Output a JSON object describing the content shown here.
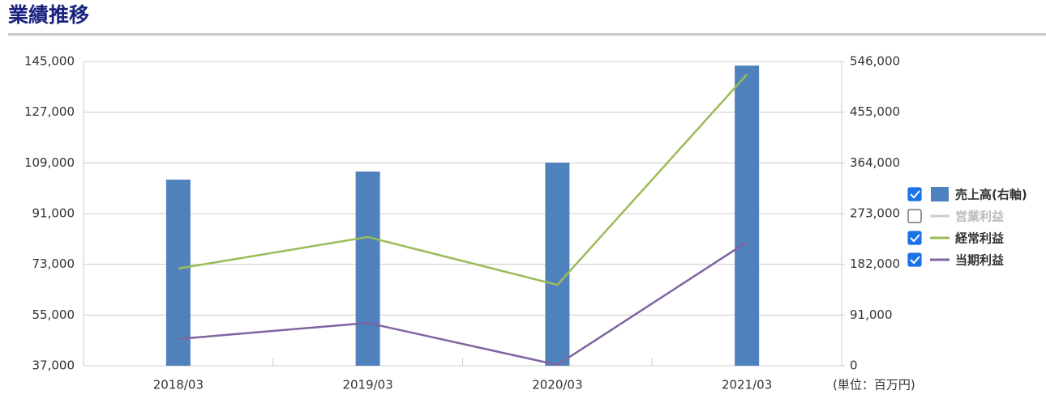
{
  "chart_data": {
    "type": "bar-line",
    "title": "業績推移",
    "unit_label": "(単位：百万円)",
    "categories": [
      "2018/03",
      "2019/03",
      "2020/03",
      "2021/03"
    ],
    "ylim": [
      37000,
      145000
    ],
    "yticks": [
      {
        "value": 37000,
        "label": "37,000"
      },
      {
        "value": 55000,
        "label": "55,000"
      },
      {
        "value": 73000,
        "label": "73,000"
      },
      {
        "value": 91000,
        "label": "91,000"
      },
      {
        "value": 109000,
        "label": "109,000"
      },
      {
        "value": 127000,
        "label": "127,000"
      },
      {
        "value": 145000,
        "label": "145,000"
      }
    ],
    "y2lim": [
      0,
      546000
    ],
    "y2ticks": [
      0,
      {
        "value": 91000,
        "label": "91,000"
      },
      {
        "value": 182000,
        "label": "182,000"
      },
      {
        "value": 273000,
        "label": "273,000"
      },
      {
        "value": 364000,
        "label": "364,000"
      },
      {
        "value": 455000,
        "label": "455,000"
      },
      {
        "value": 546000,
        "label": "546,000"
      }
    ],
    "grid": true,
    "series": [
      {
        "name": "売上高(右軸)",
        "type": "bar",
        "axis": "y2",
        "color": "#4f81bd",
        "visible": true,
        "values": [
          334000,
          348500,
          364500,
          538700
        ]
      },
      {
        "name": "営業利益",
        "type": "line",
        "color": "#cccccc",
        "visible": false,
        "values": [
          null,
          null,
          null,
          null
        ]
      },
      {
        "name": "経常利益",
        "type": "line",
        "color": "#9bbb59",
        "visible": true,
        "values": [
          71500,
          82700,
          65700,
          140400
        ]
      },
      {
        "name": "当期利益",
        "type": "line",
        "color": "#8064a2",
        "visible": true,
        "values": [
          46500,
          52200,
          37300,
          80900
        ]
      }
    ]
  }
}
